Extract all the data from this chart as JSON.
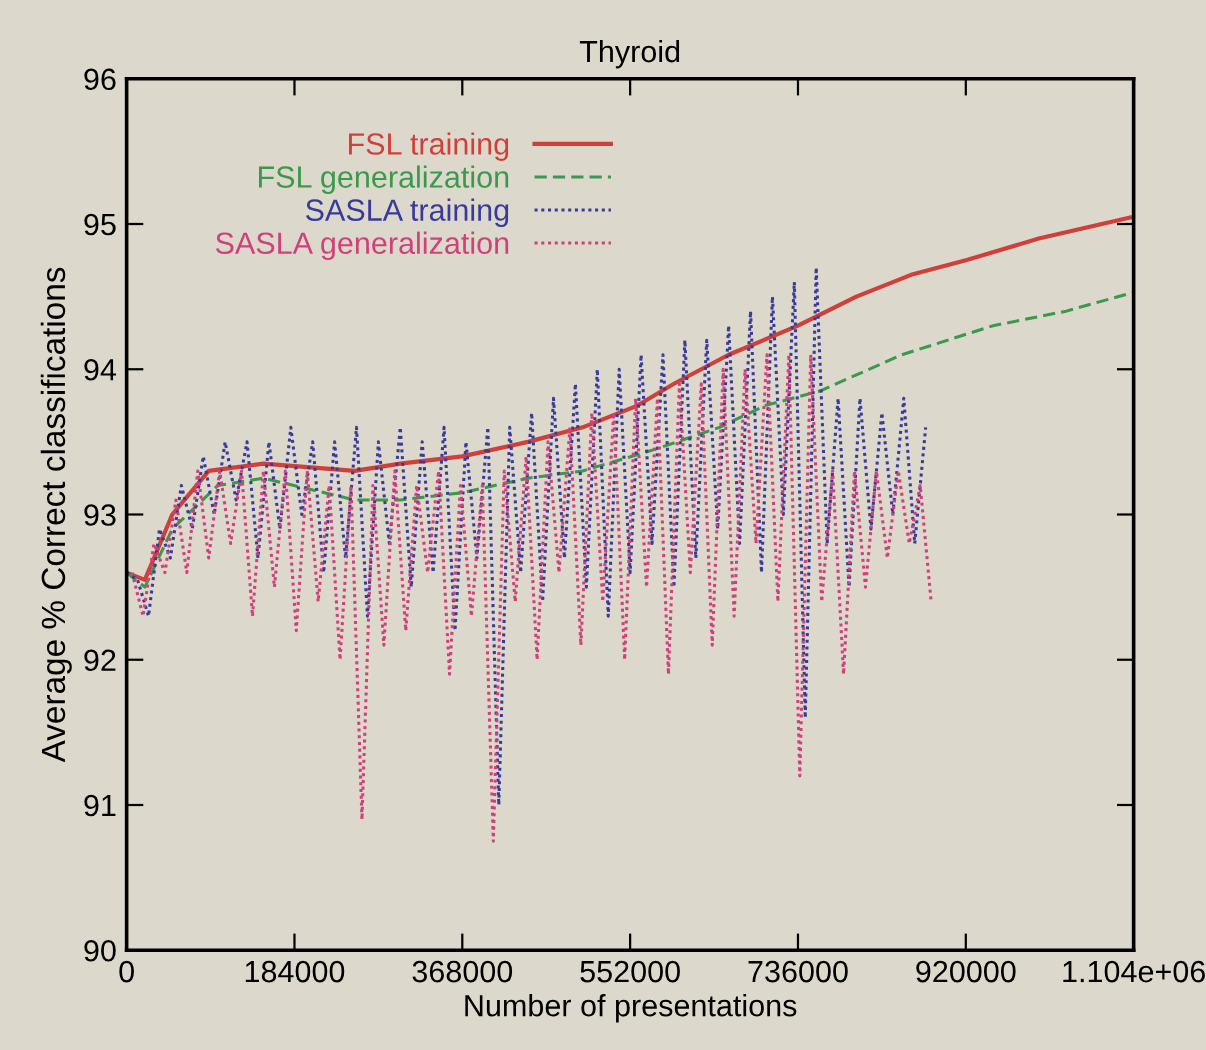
{
  "chart_data": {
    "type": "line",
    "title": "Thyroid",
    "xlabel": "Number of presentations",
    "ylabel": "Average % Correct classifications",
    "xlim": [
      0,
      1104000
    ],
    "xticks": [
      0,
      184000,
      368000,
      552000,
      736000,
      920000,
      {
        "value": 1104000,
        "label": "1.104e+06"
      }
    ],
    "ylim": [
      90,
      96
    ],
    "yticks": [
      90,
      91,
      92,
      93,
      94,
      95,
      96
    ],
    "grid": false,
    "legend": "top left",
    "marker": "none",
    "series": [
      {
        "name": "FSL training",
        "color": "#d0403a",
        "line_style": "solid",
        "x": [
          0,
          20000,
          50000,
          90000,
          150000,
          250000,
          300000,
          368000,
          440000,
          500000,
          560000,
          600000,
          660000,
          736000,
          800000,
          860000,
          920000,
          1000000,
          1104000
        ],
        "values": [
          92.6,
          92.55,
          93.0,
          93.3,
          93.35,
          93.3,
          93.35,
          93.4,
          93.5,
          93.6,
          93.75,
          93.9,
          94.1,
          94.3,
          94.5,
          94.65,
          94.75,
          94.9,
          95.05
        ]
      },
      {
        "name": "FSL generalization",
        "color": "#3a9a4a",
        "line_style": "dashed",
        "x": [
          0,
          20000,
          50000,
          100000,
          150000,
          250000,
          300000,
          368000,
          440000,
          500000,
          580000,
          650000,
          700000,
          760000,
          850000,
          950000,
          1030000,
          1104000
        ],
        "values": [
          92.6,
          92.5,
          92.9,
          93.2,
          93.25,
          93.1,
          93.1,
          93.15,
          93.25,
          93.3,
          93.45,
          93.6,
          93.75,
          93.85,
          94.1,
          94.3,
          94.4,
          94.53
        ]
      },
      {
        "name": "SASLA training",
        "color": "#3a3a9a",
        "line_style": "dotted",
        "x": [
          0,
          12000,
          24000,
          36000,
          48000,
          60000,
          72000,
          84000,
          96000,
          108000,
          120000,
          132000,
          144000,
          156000,
          168000,
          180000,
          192000,
          204000,
          216000,
          228000,
          240000,
          252000,
          264000,
          276000,
          288000,
          300000,
          312000,
          324000,
          336000,
          348000,
          360000,
          372000,
          384000,
          396000,
          408000,
          420000,
          432000,
          444000,
          456000,
          468000,
          480000,
          492000,
          504000,
          516000,
          528000,
          540000,
          552000,
          564000,
          576000,
          588000,
          600000,
          612000,
          624000,
          636000,
          648000,
          660000,
          672000,
          684000,
          696000,
          708000,
          720000,
          732000,
          744000,
          756000,
          768000,
          780000,
          792000,
          804000,
          816000,
          828000,
          840000,
          852000,
          864000,
          876000
        ],
        "values": [
          92.6,
          92.55,
          92.3,
          92.9,
          92.7,
          93.2,
          92.9,
          93.4,
          93.0,
          93.5,
          93.1,
          93.5,
          92.7,
          93.5,
          92.9,
          93.6,
          93.0,
          93.5,
          92.6,
          93.5,
          92.7,
          93.6,
          92.3,
          93.5,
          92.8,
          93.6,
          92.5,
          93.5,
          92.6,
          93.6,
          92.2,
          93.5,
          92.7,
          93.6,
          91.0,
          93.6,
          92.6,
          93.7,
          92.4,
          93.8,
          92.7,
          93.9,
          92.5,
          94.0,
          92.3,
          94.0,
          92.6,
          94.1,
          92.8,
          94.1,
          92.5,
          94.2,
          92.7,
          94.2,
          92.9,
          94.3,
          92.8,
          94.4,
          92.6,
          94.5,
          93.0,
          94.6,
          91.6,
          94.7,
          92.8,
          93.8,
          92.5,
          93.8,
          92.9,
          93.7,
          93.0,
          93.8,
          92.8,
          93.6
        ]
      },
      {
        "name": "SASLA generalization",
        "color": "#d0407a",
        "line_style": "dotted",
        "x": [
          6000,
          18000,
          30000,
          42000,
          54000,
          66000,
          78000,
          90000,
          102000,
          114000,
          126000,
          138000,
          150000,
          162000,
          174000,
          186000,
          198000,
          210000,
          222000,
          234000,
          246000,
          258000,
          270000,
          282000,
          294000,
          306000,
          318000,
          330000,
          342000,
          354000,
          366000,
          378000,
          390000,
          402000,
          414000,
          426000,
          438000,
          450000,
          462000,
          474000,
          486000,
          498000,
          510000,
          522000,
          534000,
          546000,
          558000,
          570000,
          582000,
          594000,
          606000,
          618000,
          630000,
          642000,
          654000,
          666000,
          678000,
          690000,
          702000,
          714000,
          726000,
          738000,
          750000,
          762000,
          774000,
          786000,
          798000,
          810000,
          822000,
          834000,
          846000,
          858000,
          870000,
          882000
        ],
        "values": [
          92.6,
          92.3,
          92.8,
          92.6,
          93.1,
          92.6,
          93.3,
          92.7,
          93.3,
          92.8,
          93.3,
          92.3,
          93.3,
          92.5,
          93.3,
          92.2,
          93.3,
          92.4,
          93.2,
          92.0,
          93.2,
          90.9,
          93.2,
          92.1,
          93.3,
          92.2,
          93.2,
          92.6,
          93.3,
          91.9,
          93.2,
          92.3,
          93.2,
          90.75,
          93.3,
          92.4,
          93.4,
          92.0,
          93.5,
          92.6,
          93.6,
          92.1,
          93.7,
          92.4,
          93.7,
          92.0,
          93.8,
          92.5,
          93.8,
          91.9,
          93.9,
          92.6,
          93.9,
          92.1,
          94.0,
          92.3,
          94.0,
          92.8,
          94.1,
          92.4,
          94.1,
          91.2,
          94.1,
          92.4,
          93.3,
          91.9,
          93.3,
          92.5,
          93.3,
          92.7,
          93.3,
          92.8,
          93.2,
          92.4
        ]
      }
    ]
  }
}
